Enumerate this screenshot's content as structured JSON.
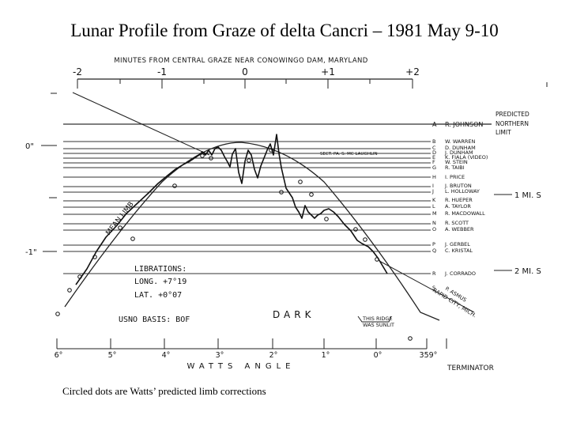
{
  "title": "Lunar Profile from Graze of delta Cancri – 1981 May 9-10",
  "caption": "Circled dots are Watts’ predicted limb corrections",
  "top_axis": {
    "label": "MINUTES FROM CENTRAL GRAZE NEAR CONOWINGO DAM, MARYLAND",
    "ticks": [
      "-2",
      "-1",
      "0",
      "+1",
      "+2"
    ]
  },
  "left_axis": {
    "ticks": [
      "0\"",
      "-1\""
    ]
  },
  "right_markers": {
    "predicted": "PREDICTED NORTHERN LIMIT",
    "one_mi": "1 MI. S",
    "two_mi": "2 MI. S"
  },
  "observers": [
    {
      "code": "A",
      "name": "R. JOHNSON"
    },
    {
      "code": "B",
      "name": "W. WARREN"
    },
    {
      "code": "C",
      "name": "D. DUNHAM"
    },
    {
      "code": "D",
      "name": "J. DUNHAM"
    },
    {
      "code": "E",
      "name": "K. FIALA (VIDEO)"
    },
    {
      "code": "F",
      "name": "W. STEIN"
    },
    {
      "code": "G",
      "name": "R. TAIBI"
    },
    {
      "code": "H",
      "name": "I. PRICE"
    },
    {
      "code": "I",
      "name": "J. BRUTON"
    },
    {
      "code": "J",
      "name": "L. HOLLOWAY"
    },
    {
      "code": "K",
      "name": "R. HUEPER"
    },
    {
      "code": "L",
      "name": "A. TAYLOR"
    },
    {
      "code": "M",
      "name": "R. MACDOWALL"
    },
    {
      "code": "N",
      "name": "R. SCOTT"
    },
    {
      "code": "O",
      "name": "A. WEBBER"
    },
    {
      "code": "P",
      "name": "J. GERBEL"
    },
    {
      "code": "Q",
      "name": "C. KRISTAL"
    },
    {
      "code": "R",
      "name": "J. CORRADO"
    },
    {
      "code": "S",
      "name": "P. ASMUS"
    }
  ],
  "annotations": {
    "mean_limb": "MEAN LIMB",
    "sect_note": "SECT. PA. S. MC LAUGHLIN",
    "librations_head": "LIBRATIONS:",
    "long": "LONG. +7°19",
    "lat": "LAT. +0°07",
    "usno": "USNO BASIS: BOF",
    "dark": "DARK",
    "ridge": "THIS RIDGE WAS SUNLIT",
    "rapid_city": "RAPID CITY, MICH.",
    "terminator": "TERMINATOR"
  },
  "bottom_axis": {
    "label": "WATTS ANGLE",
    "ticks": [
      "6°",
      "5°",
      "4°",
      "3°",
      "2°",
      "1°",
      "0°",
      "359°"
    ]
  }
}
